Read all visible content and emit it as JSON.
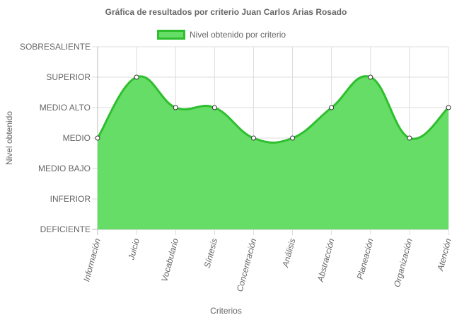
{
  "chart_data": {
    "type": "area",
    "title": "Gráfica de resultados por criterio Juan Carlos Arias Rosado",
    "xlabel": "Criterios",
    "ylabel": "Nivel obtenido",
    "legend": {
      "position": "top",
      "label": "Nivel obtenido por criterio"
    },
    "y_levels": [
      "DEFICIENTE",
      "INFERIOR",
      "MEDIO BAJO",
      "MEDIO",
      "MEDIO ALTO",
      "SUPERIOR",
      "SOBRESALIENTE"
    ],
    "ylim": [
      0,
      6
    ],
    "categories": [
      "Información",
      "Juicio",
      "Vocabulario",
      "Síntesis",
      "Concentración",
      "Análisis",
      "Abstracción",
      "Planeación",
      "Organización",
      "Atención"
    ],
    "series": [
      {
        "name": "Nivel obtenido por criterio",
        "values": [
          3,
          5,
          4,
          4,
          3,
          3,
          4,
          5,
          3,
          4
        ],
        "fill_color": "#66dd66",
        "line_color": "#2ebf2e"
      }
    ],
    "grid": true
  }
}
